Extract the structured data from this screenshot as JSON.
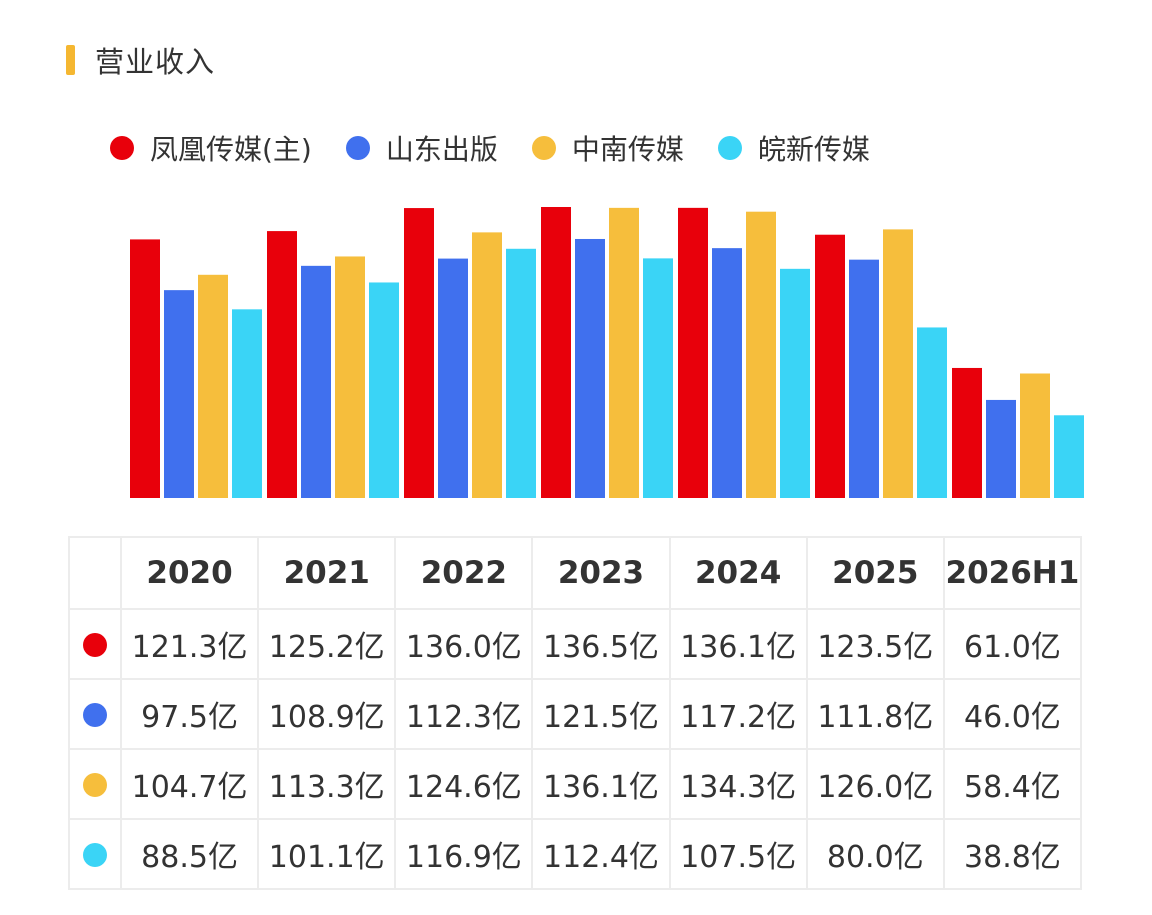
{
  "header": {
    "title": "营业收入"
  },
  "colors": {
    "title_accent": "#f5b731"
  },
  "chart_data": {
    "type": "bar",
    "categories": [
      "2020",
      "2021",
      "2022",
      "2023",
      "2024",
      "2025",
      "2026H1"
    ],
    "series": [
      {
        "name": "凤凰传媒(主)",
        "color": "#e8000b",
        "values": [
          121.3,
          125.2,
          136.0,
          136.5,
          136.1,
          123.5,
          61.0
        ]
      },
      {
        "name": "山东出版",
        "color": "#4070ee",
        "values": [
          97.5,
          108.9,
          112.3,
          121.5,
          117.2,
          111.8,
          46.0
        ]
      },
      {
        "name": "中南传媒",
        "color": "#f6be3c",
        "values": [
          104.7,
          113.3,
          124.6,
          136.1,
          134.3,
          126.0,
          58.4
        ]
      },
      {
        "name": "皖新传媒",
        "color": "#3ad4f6",
        "values": [
          88.5,
          101.1,
          116.9,
          112.4,
          107.5,
          80.0,
          38.8
        ]
      }
    ],
    "ylim": [
      0,
      136.5
    ],
    "grid": false,
    "legend_position": "top-left"
  },
  "table": {
    "headers": [
      "2020",
      "2021",
      "2022",
      "2023",
      "2024",
      "2025",
      "2026H1"
    ],
    "rows": [
      {
        "color": "#e8000b",
        "cells": [
          "121.3亿",
          "125.2亿",
          "136.0亿",
          "136.5亿",
          "136.1亿",
          "123.5亿",
          "61.0亿"
        ]
      },
      {
        "color": "#4070ee",
        "cells": [
          "97.5亿",
          "108.9亿",
          "112.3亿",
          "121.5亿",
          "117.2亿",
          "111.8亿",
          "46.0亿"
        ]
      },
      {
        "color": "#f6be3c",
        "cells": [
          "104.7亿",
          "113.3亿",
          "124.6亿",
          "136.1亿",
          "134.3亿",
          "126.0亿",
          "58.4亿"
        ]
      },
      {
        "color": "#3ad4f6",
        "cells": [
          "88.5亿",
          "101.1亿",
          "116.9亿",
          "112.4亿",
          "107.5亿",
          "80.0亿",
          "38.8亿"
        ]
      }
    ]
  }
}
